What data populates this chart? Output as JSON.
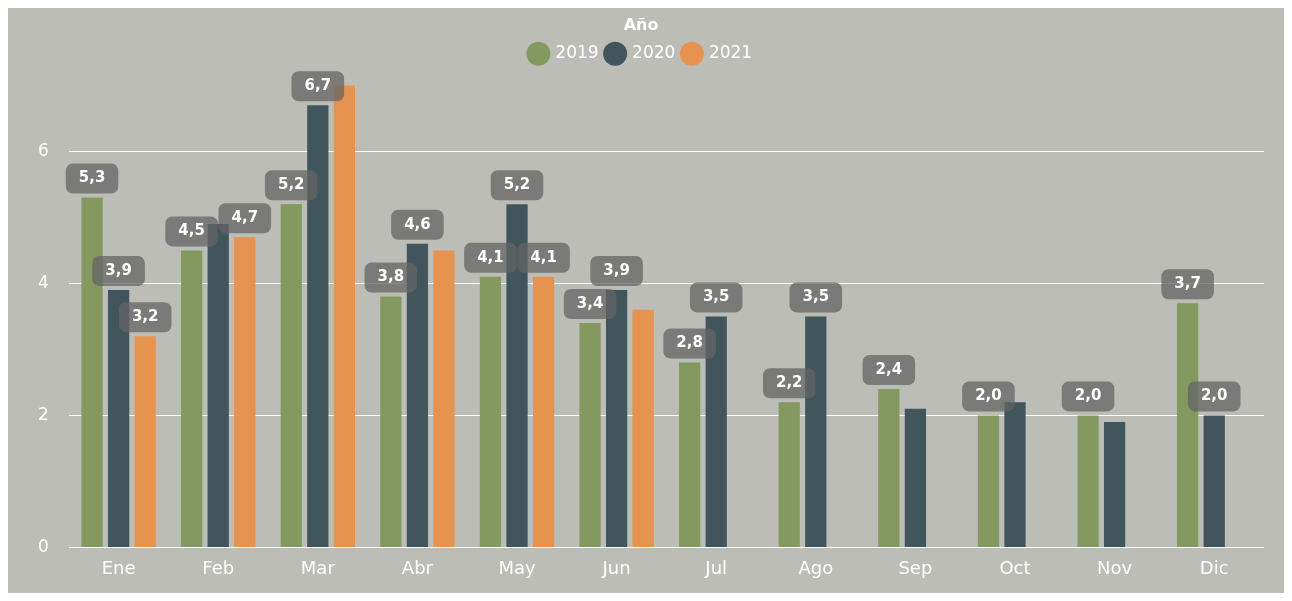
{
  "chart_data": {
    "type": "bar",
    "legend_title": "Año",
    "categories": [
      "Ene",
      "Feb",
      "Mar",
      "Abr",
      "May",
      "Jun",
      "Jul",
      "Ago",
      "Sep",
      "Oct",
      "Nov",
      "Dic"
    ],
    "series": [
      {
        "name": "2019",
        "color": "#84995f",
        "values": [
          5.3,
          4.5,
          5.2,
          3.8,
          4.1,
          3.4,
          2.8,
          2.2,
          2.4,
          2.0,
          2.0,
          3.7
        ],
        "value_labels": [
          "5,3",
          "4,5",
          "5,2",
          "3,8",
          "4,1",
          "3,4",
          "2,8",
          "2,2",
          "2,4",
          "2,0",
          "2,0",
          "3,7"
        ]
      },
      {
        "name": "2020",
        "color": "#40555c",
        "values": [
          3.9,
          4.9,
          6.7,
          4.6,
          5.2,
          3.9,
          3.5,
          3.5,
          2.1,
          2.2,
          1.9,
          2.0
        ],
        "value_labels": [
          "3,9",
          null,
          "6,7",
          "4,6",
          "5,2",
          "3,9",
          "3,5",
          "3,5",
          null,
          null,
          null,
          "2,0"
        ]
      },
      {
        "name": "2021",
        "color": "#e5934f",
        "values": [
          3.2,
          4.7,
          7.0,
          4.5,
          4.1,
          3.6,
          null,
          null,
          null,
          null,
          null,
          null
        ],
        "value_labels": [
          "3,2",
          "4,7",
          null,
          null,
          "4,1",
          null,
          null,
          null,
          null,
          null,
          null,
          null
        ]
      }
    ],
    "ylim": [
      0,
      7.2
    ],
    "yticks": [
      0,
      2,
      4,
      6
    ],
    "grid": "y",
    "legend": "top"
  }
}
